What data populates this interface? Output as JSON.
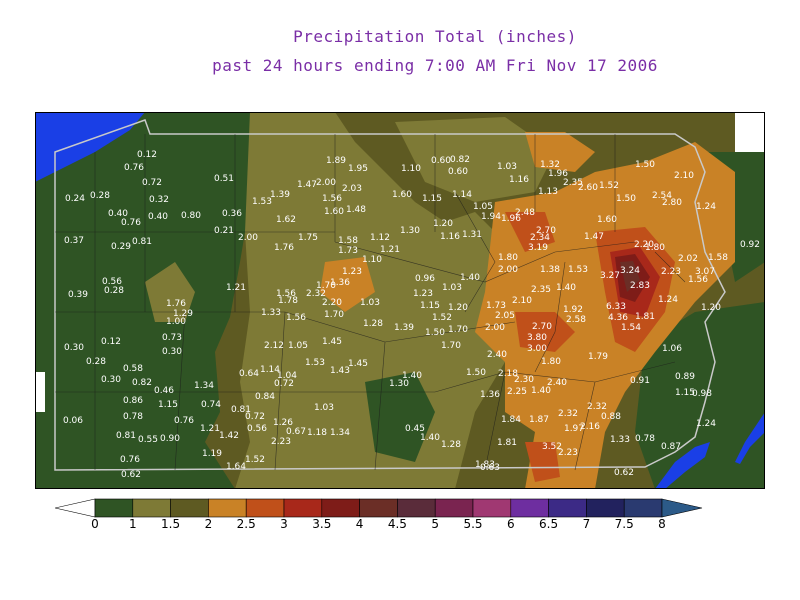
{
  "title": "Precipitation Total (inches)",
  "subtitle": "past 24 hours ending 7:00 AM Fri Nov 17 2006",
  "colors": {
    "water": "#1a3fe6",
    "border": "#c9c9c9",
    "label": "#ffffff"
  },
  "legend": {
    "labels": [
      "0",
      "1",
      "1.5",
      "2",
      "2.5",
      "3",
      "3.5",
      "4",
      "4.5",
      "5",
      "5.5",
      "6",
      "6.5",
      "7",
      "7.5",
      "8"
    ],
    "colors": [
      "#ffffff",
      "#2f5424",
      "#7e7a36",
      "#5e5a22",
      "#c98226",
      "#c0501a",
      "#a8281a",
      "#7e1c18",
      "#6b2e26",
      "#5a2c3a",
      "#7a2450",
      "#a03872",
      "#6e2ea0",
      "#3c2a86",
      "#22225e",
      "#2a3a70",
      "#2c5a88"
    ]
  },
  "map_labels": [
    [
      "0.12",
      147,
      153
    ],
    [
      "0.76",
      134,
      166
    ],
    [
      "0.72",
      152,
      181
    ],
    [
      "0.28",
      100,
      194
    ],
    [
      "0.24",
      75,
      197
    ],
    [
      "0.32",
      159,
      198
    ],
    [
      "0.51",
      224,
      177
    ],
    [
      "0.40",
      118,
      212
    ],
    [
      "0.76",
      131,
      221
    ],
    [
      "0.40",
      158,
      215
    ],
    [
      "0.80",
      191,
      214
    ],
    [
      "0.36",
      232,
      212
    ],
    [
      "0.21",
      224,
      229
    ],
    [
      "0.37",
      74,
      239
    ],
    [
      "0.81",
      142,
      240
    ],
    [
      "0.29",
      121,
      245
    ],
    [
      "0.56",
      112,
      280
    ],
    [
      "0.28",
      114,
      289
    ],
    [
      "0.39",
      78,
      293
    ],
    [
      "1.76",
      176,
      302
    ],
    [
      "1.29",
      183,
      312
    ],
    [
      "1.00",
      176,
      320
    ],
    [
      "0.73",
      172,
      336
    ],
    [
      "0.30",
      172,
      350
    ],
    [
      "0.12",
      111,
      340
    ],
    [
      "0.30",
      74,
      346
    ],
    [
      "0.28",
      96,
      360
    ],
    [
      "0.58",
      133,
      367
    ],
    [
      "0.30",
      111,
      378
    ],
    [
      "0.82",
      142,
      381
    ],
    [
      "0.46",
      164,
      389
    ],
    [
      "1.34",
      204,
      384
    ],
    [
      "0.86",
      133,
      399
    ],
    [
      "1.15",
      168,
      403
    ],
    [
      "0.74",
      211,
      403
    ],
    [
      "0.78",
      133,
      415
    ],
    [
      "0.76",
      184,
      419
    ],
    [
      "1.21",
      210,
      427
    ],
    [
      "0.81",
      126,
      434
    ],
    [
      "0.55",
      148,
      438
    ],
    [
      "0.90",
      170,
      437
    ],
    [
      "1.42",
      229,
      434
    ],
    [
      "0.06",
      73,
      419
    ],
    [
      "0.76",
      130,
      458
    ],
    [
      "0.62",
      131,
      473
    ],
    [
      "1.19",
      212,
      452
    ],
    [
      "1.52",
      255,
      458
    ],
    [
      "1.64",
      236,
      465
    ],
    [
      "1.89",
      336,
      159
    ],
    [
      "1.95",
      358,
      167
    ],
    [
      "1.10",
      411,
      167
    ],
    [
      "0.60",
      441,
      159
    ],
    [
      "0.82",
      460,
      158
    ],
    [
      "0.60",
      458,
      170
    ],
    [
      "1.03",
      507,
      165
    ],
    [
      "1.32",
      550,
      163
    ],
    [
      "1.96",
      558,
      172
    ],
    [
      "2.35",
      573,
      181
    ],
    [
      "2.60",
      588,
      186
    ],
    [
      "1.52",
      609,
      184
    ],
    [
      "1.50",
      645,
      163
    ],
    [
      "2.10",
      684,
      174
    ],
    [
      "2.00",
      326,
      181
    ],
    [
      "1.47",
      307,
      183
    ],
    [
      "2.03",
      352,
      187
    ],
    [
      "1.39",
      280,
      193
    ],
    [
      "1.53",
      262,
      200
    ],
    [
      "1.60",
      402,
      193
    ],
    [
      "1.15",
      432,
      197
    ],
    [
      "1.14",
      462,
      193
    ],
    [
      "1.56",
      332,
      197
    ],
    [
      "1.16",
      519,
      178
    ],
    [
      "1.13",
      548,
      190
    ],
    [
      "1.50",
      626,
      197
    ],
    [
      "2.54",
      662,
      194
    ],
    [
      "2.80",
      672,
      201
    ],
    [
      "1.24",
      706,
      205
    ],
    [
      "1.60",
      334,
      210
    ],
    [
      "1.48",
      356,
      208
    ],
    [
      "1.62",
      286,
      218
    ],
    [
      "1.30",
      410,
      229
    ],
    [
      "1.20",
      443,
      222
    ],
    [
      "1.16",
      450,
      235
    ],
    [
      "1.31",
      472,
      233
    ],
    [
      "1.05",
      483,
      205
    ],
    [
      "1.94",
      491,
      215
    ],
    [
      "1.96",
      511,
      217
    ],
    [
      "2.48",
      525,
      211
    ],
    [
      "2.70",
      546,
      229
    ],
    [
      "2.34",
      540,
      236
    ],
    [
      "3.19",
      538,
      246
    ],
    [
      "2.00",
      248,
      236
    ],
    [
      "1.76",
      284,
      246
    ],
    [
      "1.75",
      308,
      236
    ],
    [
      "1.58",
      348,
      239
    ],
    [
      "1.12",
      380,
      236
    ],
    [
      "1.73",
      348,
      249
    ],
    [
      "1.21",
      390,
      248
    ],
    [
      "1.10",
      372,
      258
    ],
    [
      "1.60",
      607,
      218
    ],
    [
      "1.47",
      594,
      235
    ],
    [
      "2.20",
      644,
      243
    ],
    [
      "1.80",
      655,
      246
    ],
    [
      "1.80",
      508,
      256
    ],
    [
      "2.00",
      508,
      268
    ],
    [
      "1.38",
      550,
      268
    ],
    [
      "1.53",
      578,
      268
    ],
    [
      "2.02",
      688,
      257
    ],
    [
      "1.58",
      718,
      256
    ],
    [
      "0.92",
      750,
      243
    ],
    [
      "1.23",
      352,
      270
    ],
    [
      "1.36",
      340,
      281
    ],
    [
      "1.70",
      326,
      284
    ],
    [
      "0.96",
      425,
      277
    ],
    [
      "1.40",
      470,
      276
    ],
    [
      "1.21",
      236,
      286
    ],
    [
      "1.56",
      286,
      292
    ],
    [
      "1.78",
      288,
      299
    ],
    [
      "2.32",
      316,
      292
    ],
    [
      "2.20",
      332,
      301
    ],
    [
      "1.03",
      370,
      301
    ],
    [
      "1.03",
      452,
      286
    ],
    [
      "1.23",
      423,
      292
    ],
    [
      "1.15",
      430,
      304
    ],
    [
      "1.20",
      458,
      306
    ],
    [
      "1.73",
      496,
      304
    ],
    [
      "2.10",
      522,
      299
    ],
    [
      "2.35",
      541,
      288
    ],
    [
      "1.40",
      566,
      286
    ],
    [
      "3.27",
      610,
      274
    ],
    [
      "3.24",
      630,
      269
    ],
    [
      "2.83",
      640,
      284
    ],
    [
      "2.23",
      671,
      270
    ],
    [
      "3.07",
      705,
      270
    ],
    [
      "1.56",
      698,
      278
    ],
    [
      "1.33",
      271,
      311
    ],
    [
      "1.56",
      296,
      316
    ],
    [
      "1.70",
      334,
      313
    ],
    [
      "1.28",
      373,
      322
    ],
    [
      "1.39",
      404,
      326
    ],
    [
      "1.52",
      442,
      316
    ],
    [
      "1.50",
      435,
      331
    ],
    [
      "1.70",
      458,
      328
    ],
    [
      "2.00",
      495,
      326
    ],
    [
      "2.05",
      505,
      314
    ],
    [
      "2.70",
      542,
      325
    ],
    [
      "1.92",
      573,
      308
    ],
    [
      "2.58",
      576,
      318
    ],
    [
      "6.33",
      616,
      305
    ],
    [
      "4.36",
      618,
      316
    ],
    [
      "1.54",
      631,
      326
    ],
    [
      "1.81",
      645,
      315
    ],
    [
      "1.24",
      668,
      298
    ],
    [
      "1.20",
      711,
      306
    ],
    [
      "3.80",
      537,
      336
    ],
    [
      "3.00",
      537,
      347
    ],
    [
      "2.12",
      274,
      344
    ],
    [
      "1.05",
      298,
      344
    ],
    [
      "1.45",
      332,
      340
    ],
    [
      "1.53",
      315,
      361
    ],
    [
      "1.43",
      340,
      369
    ],
    [
      "1.45",
      358,
      362
    ],
    [
      "1.30",
      399,
      382
    ],
    [
      "1.40",
      412,
      374
    ],
    [
      "1.70",
      451,
      344
    ],
    [
      "2.40",
      497,
      353
    ],
    [
      "1.80",
      551,
      360
    ],
    [
      "1.79",
      598,
      355
    ],
    [
      "1.06",
      672,
      347
    ],
    [
      "0.64",
      249,
      372
    ],
    [
      "1.14",
      270,
      368
    ],
    [
      "1.04",
      287,
      374
    ],
    [
      "0.72",
      284,
      382
    ],
    [
      "0.84",
      265,
      395
    ],
    [
      "1.50",
      476,
      371
    ],
    [
      "2.18",
      508,
      372
    ],
    [
      "2.30",
      524,
      378
    ],
    [
      "2.40",
      557,
      381
    ],
    [
      "1.40",
      541,
      389
    ],
    [
      "0.91",
      640,
      379
    ],
    [
      "0.89",
      685,
      375
    ],
    [
      "1.15",
      685,
      391
    ],
    [
      "0.98",
      702,
      392
    ],
    [
      "0.81",
      241,
      408
    ],
    [
      "0.72",
      255,
      415
    ],
    [
      "1.26",
      283,
      421
    ],
    [
      "0.56",
      257,
      427
    ],
    [
      "0.67",
      296,
      430
    ],
    [
      "1.18",
      317,
      431
    ],
    [
      "1.34",
      340,
      431
    ],
    [
      "1.03",
      324,
      406
    ],
    [
      "0.45",
      415,
      427
    ],
    [
      "1.40",
      430,
      436
    ],
    [
      "1.28",
      451,
      443
    ],
    [
      "1.36",
      490,
      393
    ],
    [
      "2.25",
      517,
      390
    ],
    [
      "1.84",
      511,
      418
    ],
    [
      "1.87",
      539,
      418
    ],
    [
      "2.32",
      568,
      412
    ],
    [
      "2.32",
      597,
      405
    ],
    [
      "1.97",
      574,
      427
    ],
    [
      "2.16",
      590,
      425
    ],
    [
      "0.88",
      611,
      415
    ],
    [
      "1.33",
      620,
      438
    ],
    [
      "0.78",
      645,
      437
    ],
    [
      "0.87",
      671,
      445
    ],
    [
      "1.24",
      706,
      422
    ],
    [
      "2.23",
      281,
      440
    ],
    [
      "1.81",
      507,
      441
    ],
    [
      "3.52",
      552,
      445
    ],
    [
      "2.23",
      568,
      451
    ],
    [
      "1.83",
      485,
      463
    ],
    [
      "0.63",
      490,
      466
    ],
    [
      "0.62",
      624,
      471
    ]
  ]
}
